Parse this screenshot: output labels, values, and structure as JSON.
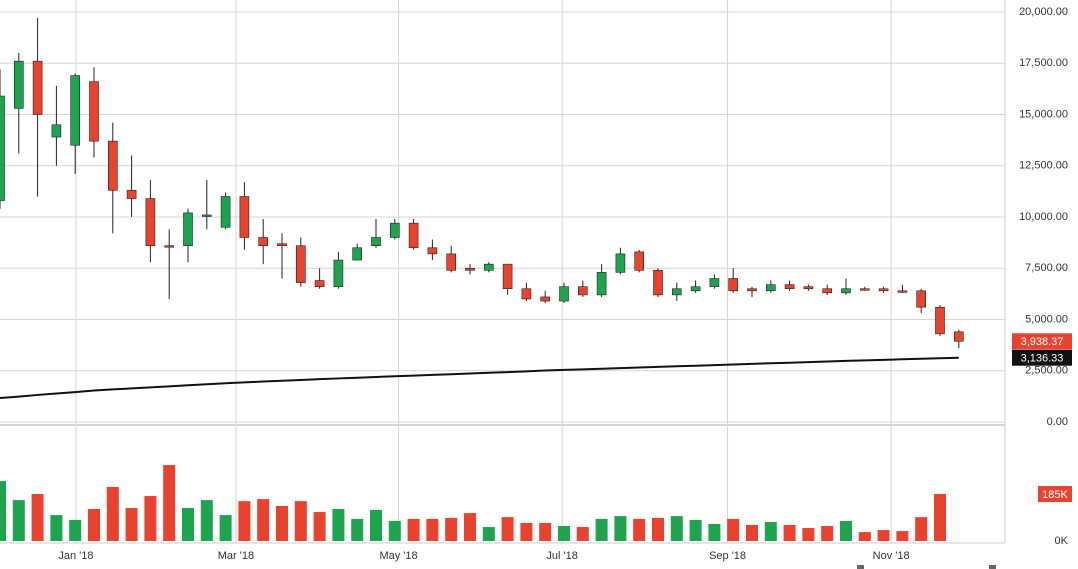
{
  "chart_data": {
    "type": "candlestick",
    "xticks": [
      {
        "value": 4.04,
        "label": "Jan '18"
      },
      {
        "value": 12.55,
        "label": "Mar '18"
      },
      {
        "value": 21.2,
        "label": "May '18"
      },
      {
        "value": 29.9,
        "label": "Jul '18"
      },
      {
        "value": 38.7,
        "label": "Sep '18"
      },
      {
        "value": 47.4,
        "label": "Nov '18"
      }
    ],
    "ylim": [
      0,
      20000
    ],
    "yticks": [
      {
        "value": 0,
        "label": "0.00"
      },
      {
        "value": 2500,
        "label": "2,500.00"
      },
      {
        "value": 5000,
        "label": "5,000.00"
      },
      {
        "value": 7500,
        "label": "7,500.00"
      },
      {
        "value": 10000,
        "label": "10,000.00"
      },
      {
        "value": 12500,
        "label": "12,500.00"
      },
      {
        "value": 15000,
        "label": "15,000.00"
      },
      {
        "value": 17500,
        "label": "17,500.00"
      },
      {
        "value": 20000,
        "label": "20,000.00"
      }
    ],
    "up_color": "#1ea34f",
    "down_color": "#e8432e",
    "grid": true,
    "open": [
      10800,
      15300,
      17600,
      13900,
      13500,
      16600,
      13700,
      11300,
      10900,
      8600,
      8600,
      10050,
      9500,
      11000,
      9000,
      8700,
      8600,
      6900,
      6600,
      7900,
      8600,
      9000,
      9700,
      8500,
      8200,
      7500,
      7400,
      7700,
      6500,
      6100,
      5900,
      6600,
      6200,
      7300,
      8300,
      7400,
      6200,
      6400,
      6600,
      7000,
      6500,
      6400,
      6700,
      6600,
      6500,
      6300,
      6500,
      6500,
      6400,
      6400,
      5600,
      4400
    ],
    "high": [
      17200,
      18000,
      19700,
      16400,
      17000,
      17300,
      14600,
      13000,
      11800,
      9400,
      10400,
      11800,
      11200,
      11700,
      9900,
      9200,
      9000,
      7500,
      8300,
      8700,
      9900,
      9900,
      9900,
      8900,
      8600,
      7700,
      7800,
      7700,
      6800,
      6400,
      6800,
      6900,
      7700,
      8500,
      8400,
      7500,
      6800,
      6900,
      7200,
      7500,
      6600,
      6900,
      6900,
      6700,
      6700,
      7000,
      6600,
      6600,
      6700,
      6500,
      5700,
      4500
    ],
    "low": [
      10400,
      13100,
      11000,
      12500,
      12100,
      12900,
      9200,
      10000,
      7800,
      6000,
      7800,
      9400,
      9400,
      8400,
      7700,
      7000,
      6600,
      6500,
      6500,
      7900,
      8500,
      8900,
      8400,
      7900,
      7300,
      7200,
      7300,
      6200,
      5900,
      5800,
      5800,
      6100,
      6100,
      7200,
      7300,
      6100,
      5900,
      6300,
      6500,
      6300,
      6100,
      6300,
      6400,
      6400,
      6200,
      6200,
      6400,
      6300,
      6300,
      5300,
      4200,
      3600
    ],
    "close": [
      15900,
      17600,
      15000,
      14500,
      16900,
      13700,
      11300,
      10900,
      8600,
      8550,
      10200,
      10100,
      11000,
      9000,
      8600,
      8600,
      6800,
      6600,
      7900,
      8500,
      9000,
      9700,
      8500,
      8200,
      7400,
      7400,
      7700,
      6500,
      6000,
      5900,
      6600,
      6200,
      7300,
      8200,
      7400,
      6200,
      6500,
      6600,
      7000,
      6400,
      6400,
      6700,
      6500,
      6500,
      6300,
      6500,
      6450,
      6400,
      6399,
      5600,
      4300,
      3938.37
    ],
    "close_label": "3,938.37",
    "ma": {
      "color": "#111111",
      "values": [
        1170,
        1240,
        1320,
        1390,
        1460,
        1535,
        1590,
        1640,
        1690,
        1740,
        1790,
        1840,
        1890,
        1930,
        1975,
        2010,
        2050,
        2090,
        2125,
        2160,
        2195,
        2230,
        2260,
        2300,
        2330,
        2365,
        2400,
        2430,
        2470,
        2510,
        2545,
        2570,
        2600,
        2630,
        2660,
        2690,
        2720,
        2745,
        2775,
        2805,
        2835,
        2865,
        2890,
        2920,
        2950,
        2980,
        3005,
        3030,
        3060,
        3085,
        3110,
        3136.33
      ],
      "last_label": "3,136.33"
    },
    "volume": {
      "vlim": [
        0,
        445000
      ],
      "vticks": [
        {
          "value": 0,
          "label": "0K"
        }
      ],
      "values": [
        236000,
        161000,
        185000,
        102000,
        83000,
        126000,
        213000,
        130000,
        177000,
        299000,
        130000,
        161000,
        102000,
        157000,
        165000,
        138000,
        157000,
        114000,
        126000,
        87000,
        122000,
        79000,
        87000,
        87000,
        91000,
        110000,
        55000,
        94000,
        71000,
        71000,
        59000,
        55000,
        87000,
        98000,
        87000,
        91000,
        98000,
        83000,
        67000,
        87000,
        63000,
        75000,
        63000,
        51000,
        59000,
        79000,
        35000,
        43000,
        39000,
        94000,
        185000,
        null
      ],
      "value_labels": {
        "50": "185K"
      }
    }
  }
}
